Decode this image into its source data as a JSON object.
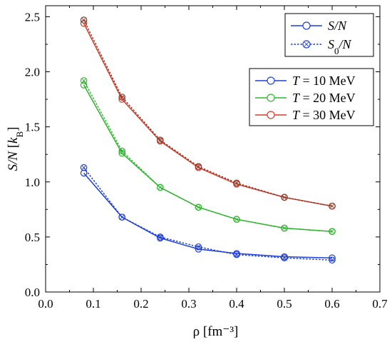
{
  "chart_data": {
    "type": "line",
    "xlabel": "ρ [fm⁻³]",
    "ylabel": "S/N [k_B]",
    "xlim": [
      0.0,
      0.7
    ],
    "ylim": [
      0.0,
      2.6
    ],
    "x_ticks": [
      "0.0",
      "0.1",
      "0.2",
      "0.3",
      "0.4",
      "0.5",
      "0.6",
      "0.7"
    ],
    "y_ticks": [
      "0.0",
      "0.5",
      "1.0",
      "1.5",
      "2.0",
      "2.5"
    ],
    "x": [
      0.08,
      0.16,
      0.24,
      0.32,
      0.4,
      0.5,
      0.6
    ],
    "series": [
      {
        "name": "T = 10 MeV",
        "quantity": "S/N",
        "color": "#1f3fdb",
        "values": [
          1.08,
          0.68,
          0.49,
          0.39,
          0.35,
          0.32,
          0.31
        ]
      },
      {
        "name": "T = 10 MeV",
        "quantity": "S0/N",
        "color": "#1f3fdb",
        "values": [
          1.13,
          0.68,
          0.5,
          0.41,
          0.34,
          0.31,
          0.29
        ]
      },
      {
        "name": "T = 20 MeV",
        "quantity": "S/N",
        "color": "#2fb52f",
        "values": [
          1.88,
          1.26,
          0.95,
          0.77,
          0.66,
          0.58,
          0.55
        ]
      },
      {
        "name": "T = 20 MeV",
        "quantity": "S0/N",
        "color": "#2fb52f",
        "values": [
          1.92,
          1.28,
          0.95,
          0.77,
          0.66,
          0.58,
          0.55
        ]
      },
      {
        "name": "T = 30 MeV",
        "quantity": "S/N",
        "color": "#d63a2a",
        "values": [
          2.44,
          1.75,
          1.37,
          1.13,
          0.98,
          0.86,
          0.78
        ]
      },
      {
        "name": "T = 30 MeV",
        "quantity": "S0/N",
        "color": "#8a3a2a",
        "values": [
          2.47,
          1.77,
          1.38,
          1.14,
          0.99,
          0.86,
          0.78
        ]
      }
    ],
    "legend_style": {
      "entries": [
        {
          "label_main": "S",
          "label_sub": "",
          "label_tail": "/N",
          "style": "solid"
        },
        {
          "label_main": "S",
          "label_sub": "0",
          "label_tail": "/N",
          "style": "dotted"
        }
      ],
      "placement": "top-right"
    },
    "legend_temperature": {
      "entries": [
        {
          "label": "T = 10 MeV",
          "color": "#1f3fdb"
        },
        {
          "label": "T = 20 MeV",
          "color": "#2fb52f"
        },
        {
          "label": "T = 30 MeV",
          "color": "#d63a2a"
        }
      ],
      "placement": "upper-right"
    },
    "grid": false
  }
}
